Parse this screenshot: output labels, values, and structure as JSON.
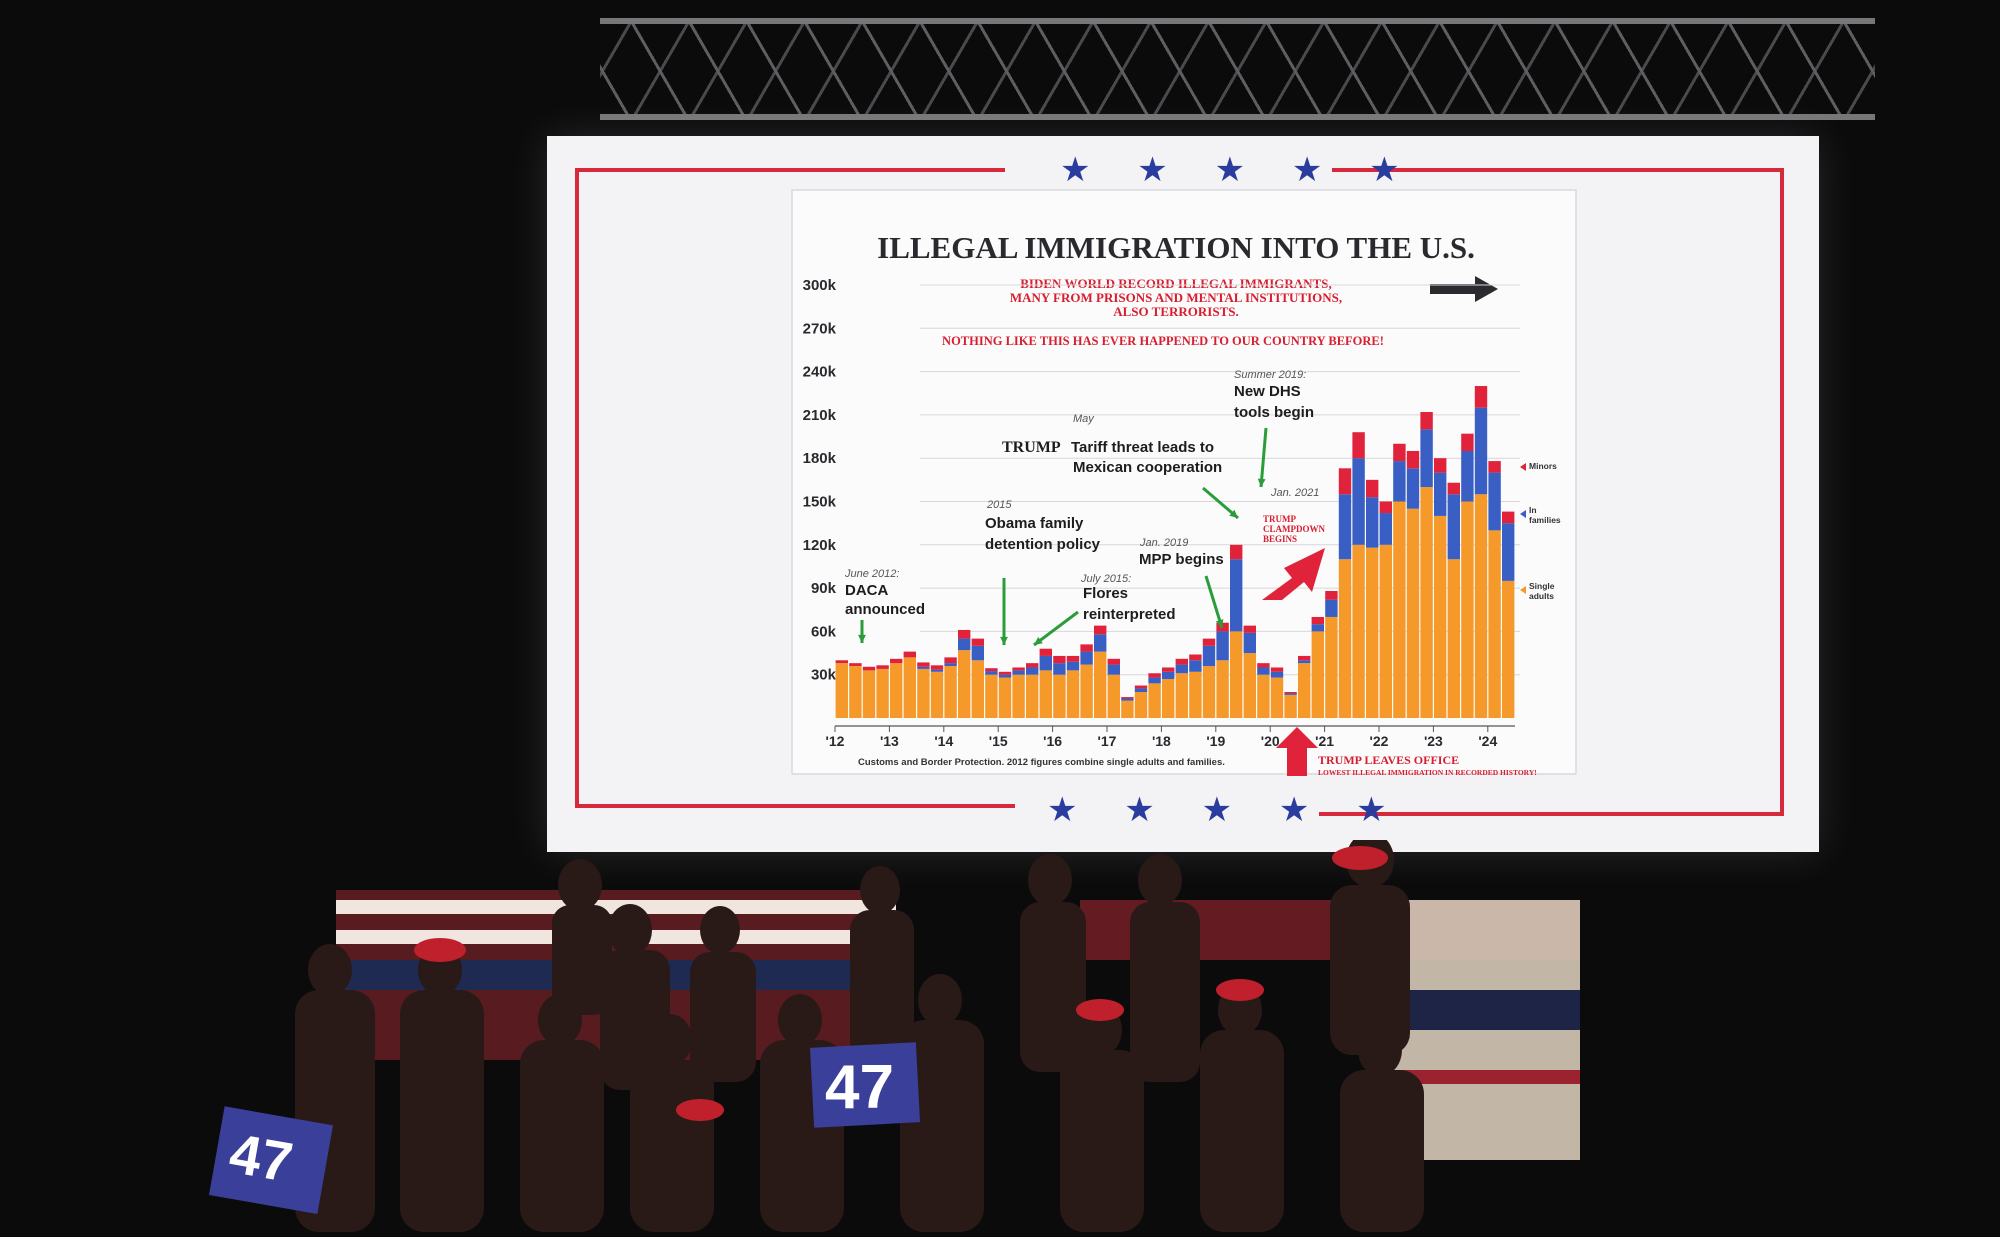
{
  "screen": {
    "star_glyphs": "★ ★ ★ ★ ★"
  },
  "sign": {
    "text": "47"
  },
  "colors": {
    "single_adults": "#f59a2a",
    "in_families": "#3a5fc4",
    "minors": "#e0223a",
    "annotation_arrow_green": "#2a9d3a",
    "headline_red": "#d81e2e",
    "stars_blue": "#2a3d9e"
  },
  "chart_data": {
    "type": "bar",
    "stacked": true,
    "title": "ILLEGAL IMMIGRATION INTO THE U.S.",
    "subtitle_lines": [
      "BIDEN WORLD RECORD ILLEGAL IMMIGRANTS,",
      "MANY FROM PRISONS AND MENTAL INSTITUTIONS,",
      "ALSO TERRORISTS."
    ],
    "headline": "NOTHING LIKE THIS HAS EVER HAPPENED TO OUR COUNTRY BEFORE!",
    "y_ticks": [
      "300k",
      "270k",
      "240k",
      "210k",
      "180k",
      "150k",
      "120k",
      "90k",
      "60k",
      "30k"
    ],
    "ylim": [
      0,
      300000
    ],
    "x_ticks": [
      "'12",
      "'13",
      "'14",
      "'15",
      "'16",
      "'17",
      "'18",
      "'19",
      "'20",
      "'21",
      "'22",
      "'23",
      "'24"
    ],
    "x_range": [
      "2012-01",
      "2024-04"
    ],
    "series_names": [
      "Minors",
      "In families",
      "Single adults"
    ],
    "legend_labels": [
      "Minors",
      "In\nfamilies",
      "Single\nadults"
    ],
    "source": "Customs and Border Protection. 2012 figures combine single adults and families.",
    "months": [
      "2012-01",
      "2012-04",
      "2012-07",
      "2012-10",
      "2013-01",
      "2013-04",
      "2013-07",
      "2013-10",
      "2014-01",
      "2014-04",
      "2014-07",
      "2014-10",
      "2015-01",
      "2015-04",
      "2015-07",
      "2015-10",
      "2016-01",
      "2016-04",
      "2016-07",
      "2016-10",
      "2017-01",
      "2017-04",
      "2017-07",
      "2017-10",
      "2018-01",
      "2018-04",
      "2018-07",
      "2018-10",
      "2019-01",
      "2019-04",
      "2019-07",
      "2019-10",
      "2020-01",
      "2020-04",
      "2020-07",
      "2020-10",
      "2021-01",
      "2021-04",
      "2021-07",
      "2021-10",
      "2022-01",
      "2022-04",
      "2022-07",
      "2022-10",
      "2023-01",
      "2023-04",
      "2023-07",
      "2023-10",
      "2024-01",
      "2024-04"
    ],
    "series": [
      {
        "name": "Single adults",
        "values": [
          38000,
          36000,
          33000,
          34000,
          38000,
          42000,
          34000,
          32000,
          36000,
          47000,
          40000,
          30000,
          28000,
          30000,
          30000,
          33000,
          30000,
          33000,
          37000,
          46000,
          30000,
          12000,
          18000,
          24000,
          27000,
          31000,
          32000,
          36000,
          40000,
          60000,
          45000,
          30000,
          28000,
          16000,
          38000,
          60000,
          70000,
          110000,
          120000,
          118000,
          120000,
          150000,
          145000,
          160000,
          140000,
          110000,
          150000,
          155000,
          130000,
          95000
        ]
      },
      {
        "name": "In families",
        "values": [
          0,
          0,
          0,
          0,
          0,
          0,
          1500,
          1500,
          2000,
          8000,
          10000,
          2500,
          2000,
          3000,
          5000,
          10000,
          8000,
          6000,
          9000,
          12000,
          7000,
          1500,
          2500,
          4000,
          5000,
          6000,
          8000,
          14000,
          20000,
          50000,
          14000,
          5000,
          4000,
          1000,
          2000,
          5000,
          12000,
          45000,
          60000,
          35000,
          22000,
          28000,
          28000,
          40000,
          30000,
          45000,
          35000,
          60000,
          40000,
          40000
        ]
      },
      {
        "name": "Minors",
        "values": [
          2000,
          2000,
          2500,
          2500,
          3000,
          4000,
          3000,
          3000,
          4000,
          6000,
          5000,
          2000,
          2000,
          2000,
          3000,
          5000,
          5000,
          4000,
          5000,
          6000,
          4000,
          1000,
          2000,
          3000,
          3000,
          4000,
          4000,
          5000,
          6000,
          10000,
          5000,
          3000,
          3000,
          1000,
          3000,
          5000,
          6000,
          18000,
          18000,
          12000,
          8000,
          12000,
          12000,
          12000,
          10000,
          8000,
          12000,
          15000,
          8000,
          8000
        ]
      }
    ],
    "annotations": [
      {
        "date_line": "June 2012:",
        "label": "DACA\nannounced",
        "arrow_month": "2012-07"
      },
      {
        "date_line": "2015",
        "label": "Obama family\ndetention policy",
        "arrow_month": "2015-01"
      },
      {
        "date_line": "July 2015:",
        "label": "Flores\nreinterpreted",
        "arrow_month": "2015-07"
      },
      {
        "date_line": "Jan. 2019",
        "label": "MPP begins",
        "arrow_month": "2019-01"
      },
      {
        "date_line": "May",
        "label_bold": "TRUMP",
        "label": " Tariff threat leads to\nMexican cooperation",
        "arrow_month": "2019-05"
      },
      {
        "date_line": "Summer 2019:",
        "label": "New DHS\ntools begin",
        "arrow_month": "2019-08"
      },
      {
        "date_line": "Jan. 2021",
        "label": ""
      },
      {
        "date_line": "",
        "label": "TRUMP\nCLAMPDOWN\nBEGINS"
      },
      {
        "date_line": "",
        "label": "TRUMP LEAVES OFFICE",
        "sub": "LOWEST ILLEGAL IMMIGRATION IN RECORDED HISTORY!"
      }
    ]
  }
}
